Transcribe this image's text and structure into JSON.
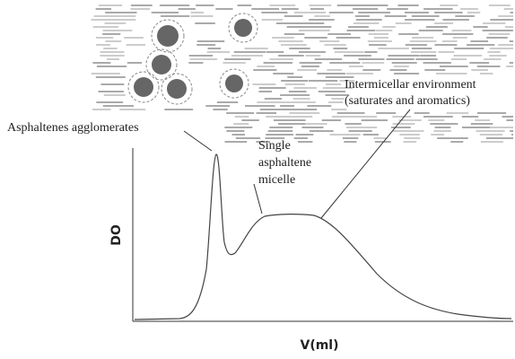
{
  "labels": {
    "agglomerates": "Asphaltenes agglomerates",
    "micelle": [
      "Single",
      "asphaltene",
      "micelle"
    ],
    "intermicellar": [
      "Intermicellar environment",
      "(saturates and aromatics)"
    ]
  },
  "axes": {
    "y_title": "DO",
    "x_title": "V(ml)"
  }
}
